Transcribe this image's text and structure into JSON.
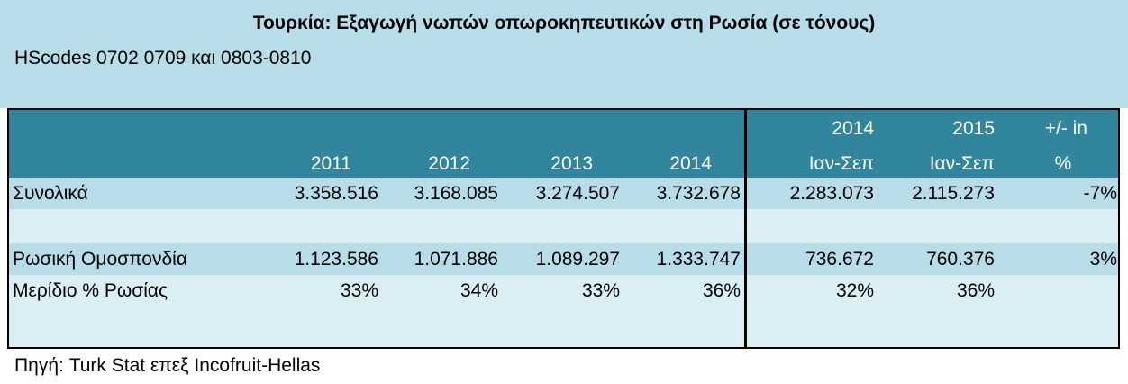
{
  "header": {
    "title": "Τουρκία: Εξαγωγή νωπών οπωροκηπευτικών στη Ρωσία (σε τόνους)",
    "subtitle": "HScodes 0702 0709 και 0803-0810"
  },
  "table": {
    "columns": [
      [
        "2011"
      ],
      [
        "2012"
      ],
      [
        "2013"
      ],
      [
        "2014"
      ],
      [
        "2014",
        "Ιαν-Σεπ"
      ],
      [
        "2015",
        "Ιαν-Σεπ"
      ],
      [
        "+/- in",
        "%"
      ]
    ],
    "rows": [
      {
        "label": "Συνολικά",
        "cells": [
          "3.358.516",
          "3.168.085",
          "3.274.507",
          "3.732.678",
          "2.283.073",
          "2.115.273",
          "-7%"
        ]
      },
      {
        "label": "Ρωσική Ομοσπονδία",
        "cells": [
          "1.123.586",
          "1.071.886",
          "1.089.297",
          "1.333.747",
          "736.672",
          "760.376",
          "3%"
        ]
      },
      {
        "label": "Μερίδιο % Ρωσίας",
        "cells": [
          "33%",
          "34%",
          "33%",
          "36%",
          "32%",
          "36%"
        ]
      }
    ]
  },
  "source": "Πηγή: Turk Stat επεξ Incofruit-Hellas"
}
